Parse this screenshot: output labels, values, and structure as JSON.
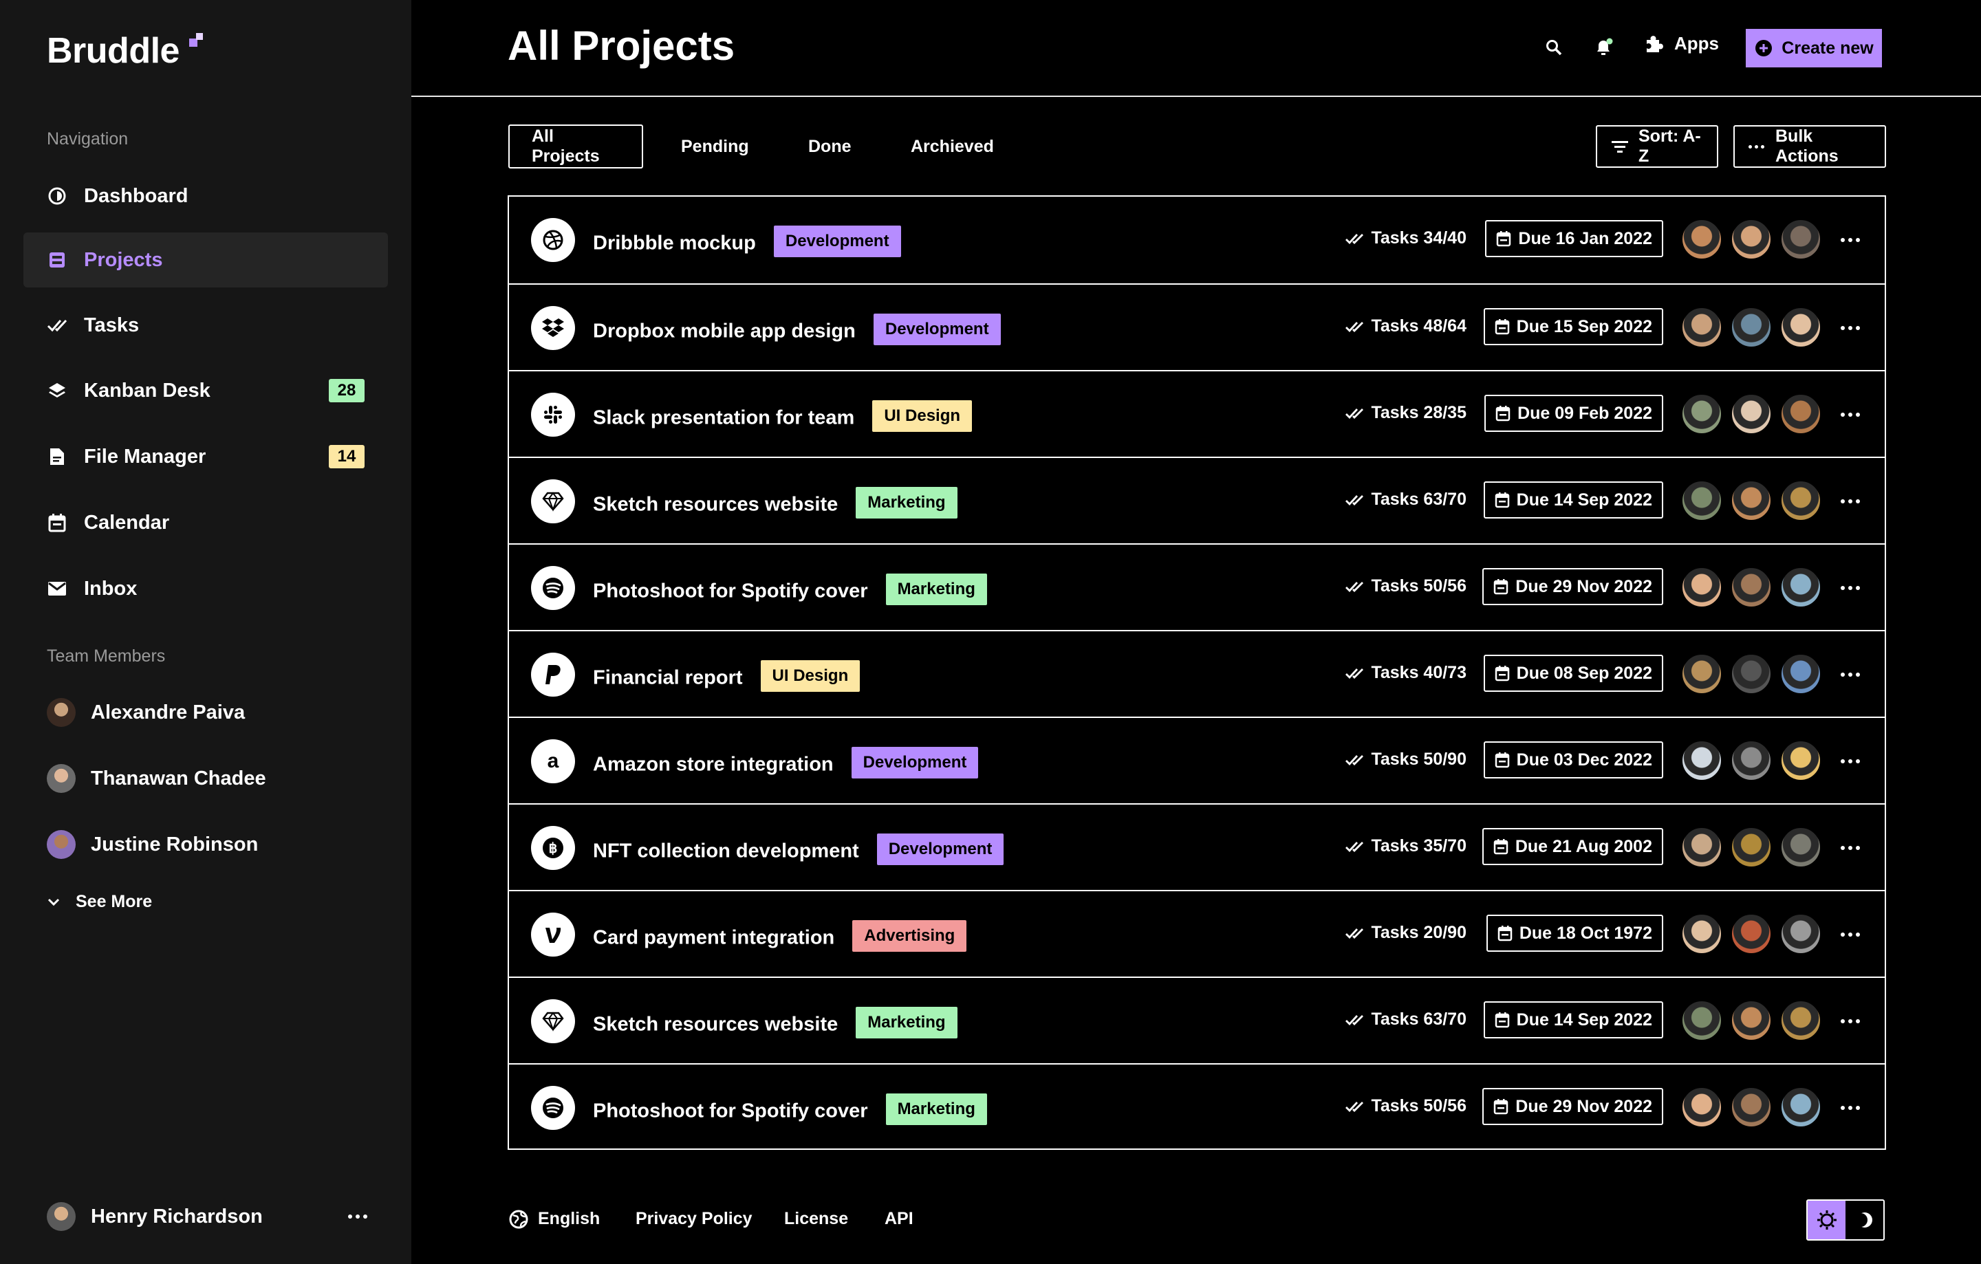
{
  "brand": {
    "name": "Bruddle",
    "accent": "#b68cff"
  },
  "sidebar": {
    "nav_label": "Navigation",
    "items": [
      {
        "label": "Dashboard",
        "icon": "dashboard-icon"
      },
      {
        "label": "Projects",
        "icon": "projects-icon",
        "active": true
      },
      {
        "label": "Tasks",
        "icon": "double-check-icon"
      },
      {
        "label": "Kanban Desk",
        "icon": "layers-icon",
        "badge": "28",
        "badge_color": "#a7f3b5"
      },
      {
        "label": "File Manager",
        "icon": "file-icon",
        "badge": "14",
        "badge_color": "#fde7a3"
      },
      {
        "label": "Calendar",
        "icon": "calendar-icon"
      },
      {
        "label": "Inbox",
        "icon": "mail-icon"
      }
    ],
    "team_label": "Team Members",
    "members": [
      {
        "name": "Alexandre Paiva"
      },
      {
        "name": "Thanawan Chadee"
      },
      {
        "name": "Justine Robinson"
      }
    ],
    "see_more": "See More",
    "current_user": "Henry Richardson"
  },
  "header": {
    "title": "All Projects",
    "apps_label": "Apps",
    "create_label": "Create new"
  },
  "tabs": [
    {
      "label": "All Projects",
      "active": true
    },
    {
      "label": "Pending"
    },
    {
      "label": "Done"
    },
    {
      "label": "Archieved"
    }
  ],
  "toolbar": {
    "sort_label": "Sort: A-Z",
    "bulk_label": "Bulk Actions"
  },
  "tag_colors": {
    "Development": "#b68cff",
    "UI Design": "#fde7a3",
    "Marketing": "#a7f3b5",
    "Advertising": "#f39a9a"
  },
  "projects": [
    {
      "name": "Dribbble mockup",
      "tag": "Development",
      "tasks": "Tasks 34/40",
      "due": "Due 16 Jan 2022",
      "icon": "dribbble-icon"
    },
    {
      "name": "Dropbox mobile app design",
      "tag": "Development",
      "tasks": "Tasks 48/64",
      "due": "Due 15 Sep 2022",
      "icon": "dropbox-icon"
    },
    {
      "name": "Slack presentation for team",
      "tag": "UI Design",
      "tasks": "Tasks 28/35",
      "due": "Due 09 Feb 2022",
      "icon": "slack-icon"
    },
    {
      "name": "Sketch resources website",
      "tag": "Marketing",
      "tasks": "Tasks 63/70",
      "due": "Due 14 Sep 2022",
      "icon": "sketch-icon"
    },
    {
      "name": "Photoshoot for Spotify cover",
      "tag": "Marketing",
      "tasks": "Tasks 50/56",
      "due": "Due 29 Nov 2022",
      "icon": "spotify-icon"
    },
    {
      "name": "Financial report",
      "tag": "UI Design",
      "tasks": "Tasks 40/73",
      "due": "Due 08 Sep 2022",
      "icon": "paypal-icon"
    },
    {
      "name": "Amazon store integration",
      "tag": "Development",
      "tasks": "Tasks 50/90",
      "due": "Due 03 Dec 2022",
      "icon": "amazon-icon"
    },
    {
      "name": "NFT collection development",
      "tag": "Development",
      "tasks": "Tasks 35/70",
      "due": "Due 21 Aug 2002",
      "icon": "bitcoin-icon"
    },
    {
      "name": "Card payment integration",
      "tag": "Advertising",
      "tasks": "Tasks 20/90",
      "due": "Due 18 Oct 1972",
      "icon": "venmo-icon"
    },
    {
      "name": "Sketch resources website",
      "tag": "Marketing",
      "tasks": "Tasks 63/70",
      "due": "Due 14 Sep 2022",
      "icon": "sketch-icon"
    },
    {
      "name": "Photoshoot for Spotify cover",
      "tag": "Marketing",
      "tasks": "Tasks 50/56",
      "due": "Due 29 Nov 2022",
      "icon": "spotify-icon"
    }
  ],
  "footer": {
    "language": "English",
    "links": [
      "Privacy Policy",
      "License",
      "API"
    ]
  }
}
